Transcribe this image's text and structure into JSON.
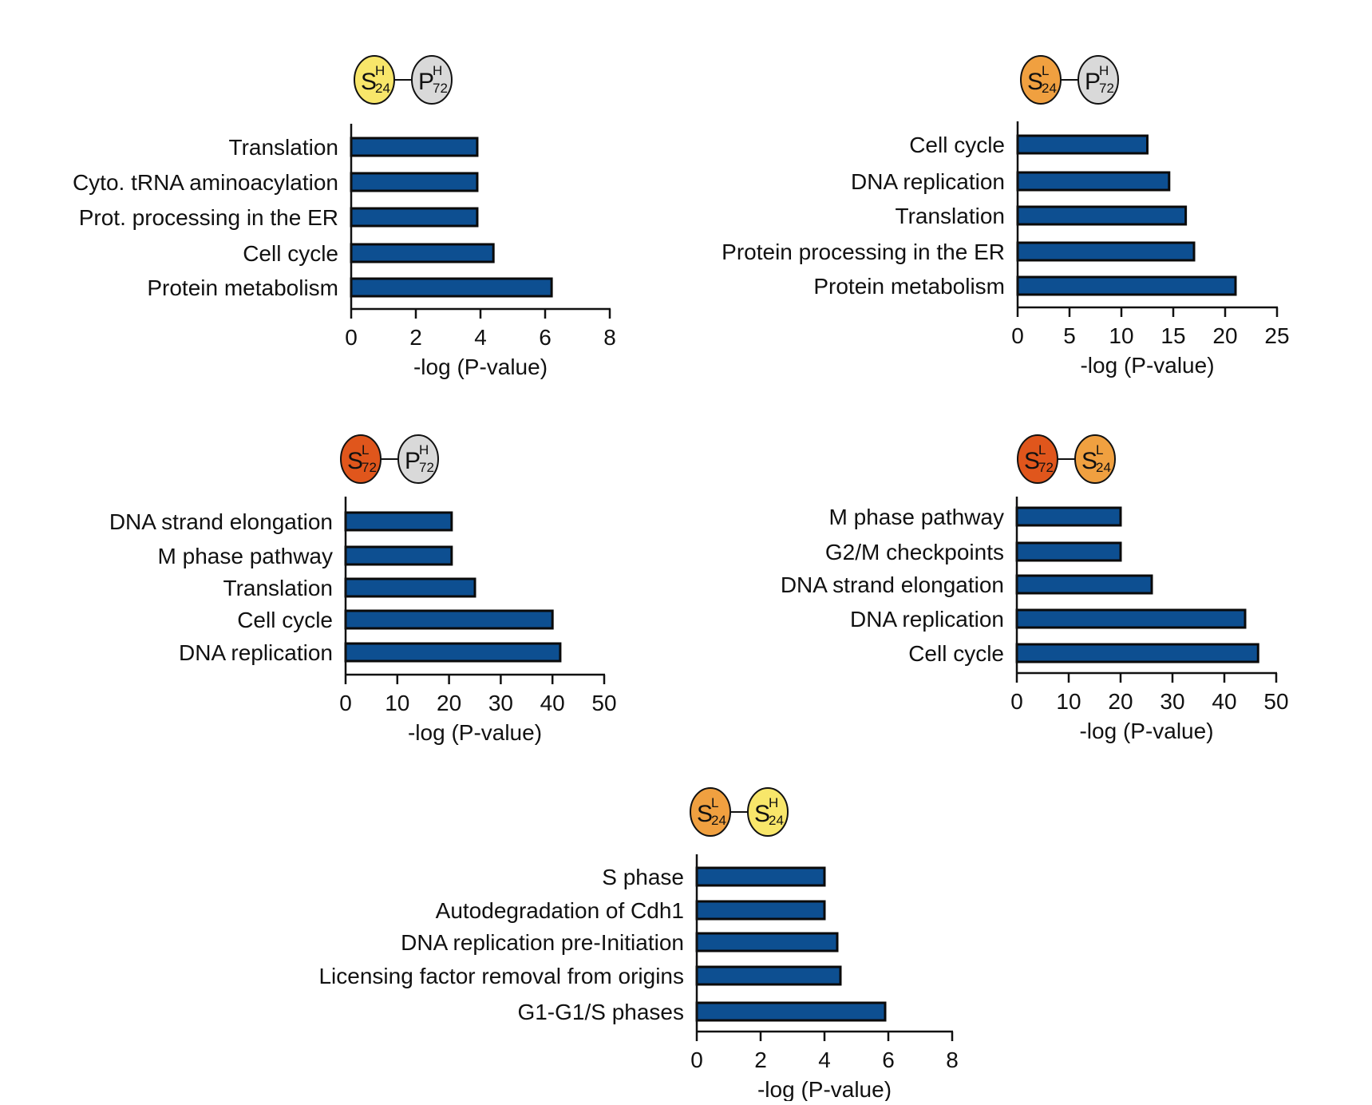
{
  "colors": {
    "bar": "#0d4f91",
    "bar_stroke": "#0a0a0a",
    "axis": "#111111",
    "yellow": "#f8e66a",
    "light_orange": "#f0a040",
    "dark_orange": "#e0561c",
    "gray": "#d9d9d9"
  },
  "chart_data": [
    {
      "type": "bar",
      "orientation": "horizontal",
      "comparison": {
        "left": {
          "letter": "S",
          "sup": "H",
          "sub": "24",
          "color": "yellow"
        },
        "right": {
          "letter": "P",
          "sup": "H",
          "sub": "72",
          "color": "gray"
        }
      },
      "categories": [
        "Translation",
        "Cyto. tRNA aminoacylation",
        "Prot. processing in the ER",
        "Cell cycle",
        "Protein metabolism"
      ],
      "values": [
        3.9,
        3.9,
        3.9,
        4.4,
        6.2
      ],
      "xlabel": "-log (P-value)",
      "xlim": [
        0,
        8
      ],
      "xticks": [
        0,
        2,
        4,
        6,
        8
      ]
    },
    {
      "type": "bar",
      "orientation": "horizontal",
      "comparison": {
        "left": {
          "letter": "S",
          "sup": "L",
          "sub": "24",
          "color": "light_orange"
        },
        "right": {
          "letter": "P",
          "sup": "H",
          "sub": "72",
          "color": "gray"
        }
      },
      "categories": [
        "Cell cycle",
        "DNA replication",
        "Translation",
        "Protein processing in the ER",
        "Protein metabolism"
      ],
      "values": [
        12.5,
        14.6,
        16.2,
        17.0,
        21.0
      ],
      "xlabel": "-log (P-value)",
      "xlim": [
        0,
        25
      ],
      "xticks": [
        0,
        5,
        10,
        15,
        20,
        25
      ]
    },
    {
      "type": "bar",
      "orientation": "horizontal",
      "comparison": {
        "left": {
          "letter": "S",
          "sup": "L",
          "sub": "72",
          "color": "dark_orange"
        },
        "right": {
          "letter": "P",
          "sup": "H",
          "sub": "72",
          "color": "gray"
        }
      },
      "categories": [
        "DNA strand elongation",
        "M phase pathway",
        "Translation",
        "Cell cycle",
        "DNA replication"
      ],
      "values": [
        20.5,
        20.5,
        25.0,
        40.0,
        41.5
      ],
      "xlabel": "-log (P-value)",
      "xlim": [
        0,
        50
      ],
      "xticks": [
        0,
        10,
        20,
        30,
        40,
        50
      ]
    },
    {
      "type": "bar",
      "orientation": "horizontal",
      "comparison": {
        "left": {
          "letter": "S",
          "sup": "L",
          "sub": "72",
          "color": "dark_orange"
        },
        "right": {
          "letter": "S",
          "sup": "L",
          "sub": "24",
          "color": "light_orange"
        }
      },
      "categories": [
        "M phase pathway",
        "G2/M checkpoints",
        "DNA strand elongation",
        "DNA replication",
        "Cell cycle"
      ],
      "values": [
        20.0,
        20.0,
        26.0,
        44.0,
        46.5
      ],
      "xlabel": "-log (P-value)",
      "xlim": [
        0,
        50
      ],
      "xticks": [
        0,
        10,
        20,
        30,
        40,
        50
      ]
    },
    {
      "type": "bar",
      "orientation": "horizontal",
      "comparison": {
        "left": {
          "letter": "S",
          "sup": "L",
          "sub": "24",
          "color": "light_orange"
        },
        "right": {
          "letter": "S",
          "sup": "H",
          "sub": "24",
          "color": "yellow"
        }
      },
      "categories": [
        "S phase",
        "Autodegradation of Cdh1",
        "DNA replication pre-Initiation",
        "Licensing factor removal from origins",
        "G1-G1/S phases"
      ],
      "values": [
        4.0,
        4.0,
        4.4,
        4.5,
        5.9
      ],
      "xlabel": "-log (P-value)",
      "xlim": [
        0,
        8
      ],
      "xticks": [
        0,
        2,
        4,
        6,
        8
      ]
    }
  ]
}
